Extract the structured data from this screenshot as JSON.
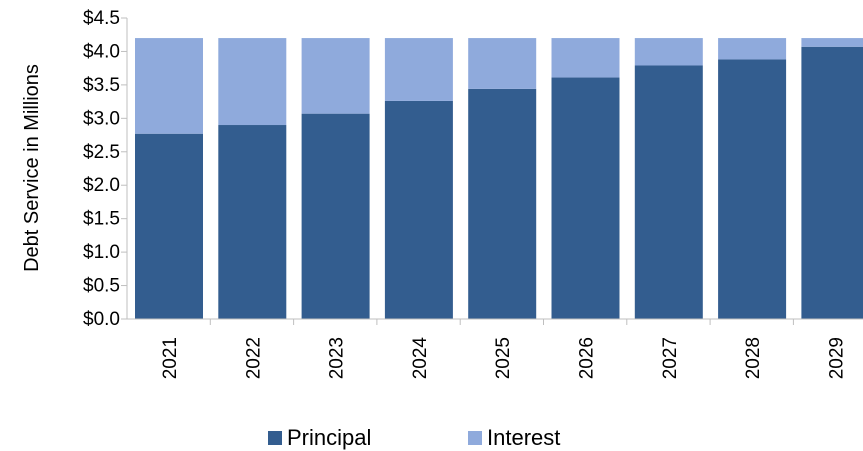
{
  "chart_data": {
    "type": "bar",
    "stacked": true,
    "categories": [
      "2021",
      "2022",
      "2023",
      "2024",
      "2025",
      "2026",
      "2027",
      "2028",
      "2029"
    ],
    "series": [
      {
        "name": "Principal",
        "color": "#335d8f",
        "values": [
          2.77,
          2.9,
          3.07,
          3.26,
          3.44,
          3.61,
          3.79,
          3.88,
          4.07
        ]
      },
      {
        "name": "Interest",
        "color": "#8faadc",
        "values": [
          1.43,
          1.3,
          1.13,
          0.94,
          0.76,
          0.59,
          0.41,
          0.32,
          0.13
        ]
      }
    ],
    "ylabel": "Debt Service in Millions",
    "ylim": [
      0,
      4.5
    ],
    "yticks": [
      "$0.0",
      "$0.5",
      "$1.0",
      "$1.5",
      "$2.0",
      "$2.5",
      "$3.0",
      "$3.5",
      "$4.0",
      "$4.5"
    ],
    "grid": false,
    "legend_position": "bottom"
  }
}
